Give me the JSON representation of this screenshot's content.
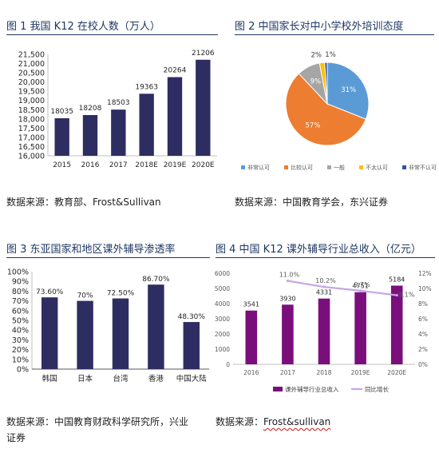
{
  "figures": [
    {
      "title": "图 1  我国 K12 在校人数（万人）",
      "source": "数据来源：教育部、Frost&Sullivan"
    },
    {
      "title": "图 2  中国家长对中小学校外培训态度",
      "source": "数据来源：中国教育学会，东兴证券"
    },
    {
      "title": "图 3  东亚国家和地区课外辅导渗透率",
      "source_a": "数据来源：中国教育财政科学研究所，兴业",
      "source_b": "证券"
    },
    {
      "title": "图 4  中国 K12 课外辅导行业总收入（亿元）",
      "source_prefix": "数据来源：",
      "source_name": "Frost&sullivan"
    }
  ],
  "colors": {
    "navy": "#2e2d62",
    "purple": "#7a0f7c",
    "line": "#c6a6e8",
    "pie_blue": "#5b9bd5",
    "pie_orange": "#ed7d31",
    "pie_gray": "#a5a5a5",
    "pie_yellow": "#ffc000",
    "pie_navy": "#2f5597"
  },
  "chart_data": [
    {
      "type": "bar",
      "title": "",
      "categories": [
        "2015",
        "2016",
        "2017",
        "2018E",
        "2019E",
        "2020E"
      ],
      "values": [
        18035,
        18208,
        18503,
        19363,
        20264,
        21206
      ],
      "value_labels": [
        "18035",
        "18208",
        "18503",
        "19363",
        "20264",
        "21206"
      ],
      "ylim": [
        16000,
        21500
      ],
      "yticks": [
        "21,500",
        "21,000",
        "20,500",
        "20,000",
        "19,500",
        "19,000",
        "18,500",
        "18,000",
        "17,500",
        "17,000",
        "16,500",
        "16,000"
      ],
      "ytick_values": [
        21500,
        21000,
        20500,
        20000,
        19500,
        19000,
        18500,
        18000,
        17500,
        17000,
        16500,
        16000
      ]
    },
    {
      "type": "pie",
      "title": "",
      "slices": [
        {
          "label": "非常认可",
          "value": 31,
          "text": "31%"
        },
        {
          "label": "比较认可",
          "value": 57,
          "text": "57%"
        },
        {
          "label": "一般",
          "value": 9,
          "text": "9%"
        },
        {
          "label": "不太认可",
          "value": 2,
          "text": "2%"
        },
        {
          "label": "非常不认可",
          "value": 1,
          "text": "1%"
        }
      ],
      "legend": "bottom"
    },
    {
      "type": "bar",
      "title": "",
      "categories": [
        "韩国",
        "日本",
        "台湾",
        "香港",
        "中国大陆"
      ],
      "values": [
        73.6,
        70,
        72.5,
        86.7,
        48.3
      ],
      "value_labels": [
        "73.60%",
        "70%",
        "72.50%",
        "86.70%",
        "48.30%"
      ],
      "ylim": [
        0,
        100
      ],
      "yticks": [
        "100%",
        "90%",
        "80%",
        "70%",
        "60%",
        "50%",
        "40%",
        "30%",
        "20%",
        "10%",
        "0%"
      ],
      "ytick_values": [
        100,
        90,
        80,
        70,
        60,
        50,
        40,
        30,
        20,
        10,
        0
      ]
    },
    {
      "type": "bar",
      "title": "",
      "categories": [
        "2016",
        "2017",
        "2018",
        "2019E",
        "2020E"
      ],
      "series": [
        {
          "name": "课外辅导行业总收入",
          "values": [
            3541,
            3930,
            4331,
            4751,
            5184
          ],
          "labels": [
            "3541",
            "3930",
            "4331",
            "4751",
            "5184"
          ]
        },
        {
          "name": "同比增长",
          "kind": "line",
          "x": [
            "2017",
            "2018",
            "2019E",
            "2020E"
          ],
          "values": [
            11.0,
            10.2,
            9.7,
            9.1
          ],
          "labels": [
            "11.0%",
            "10.2%",
            "9.7%",
            "9.1%"
          ]
        }
      ],
      "ylim": [
        0,
        6000
      ],
      "yticks": [
        "6000",
        "5000",
        "4000",
        "3000",
        "2000",
        "1000",
        "0"
      ],
      "ytick_values": [
        6000,
        5000,
        4000,
        3000,
        2000,
        1000,
        0
      ],
      "y2lim": [
        0,
        12
      ],
      "y2ticks": [
        "12%",
        "10%",
        "8%",
        "6%",
        "4%",
        "2%",
        "0%"
      ],
      "y2tick_values": [
        12,
        10,
        8,
        6,
        4,
        2,
        0
      ],
      "legend": "bottom"
    }
  ]
}
